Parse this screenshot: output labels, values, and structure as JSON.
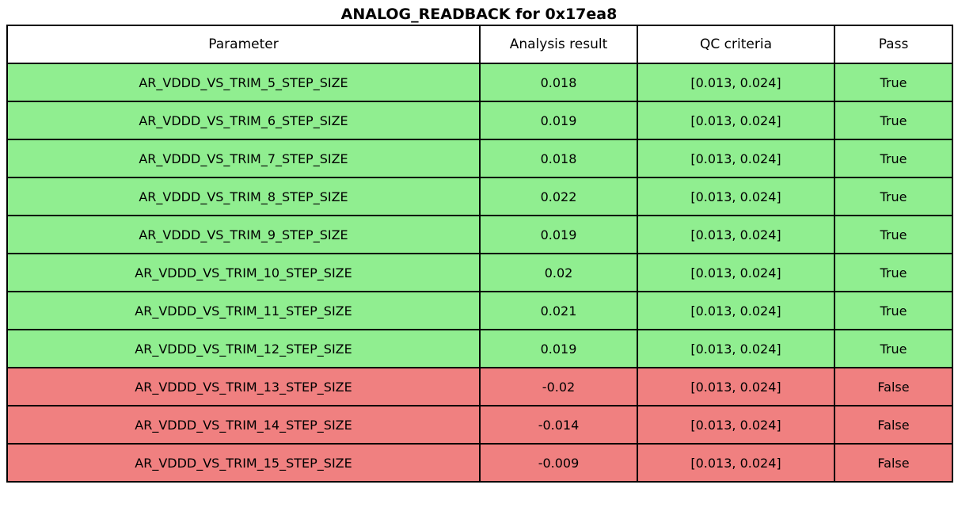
{
  "title": "ANALOG_READBACK for 0x17ea8",
  "colors": {
    "pass_row": "#90EE90",
    "fail_row": "#F08080",
    "header_bg": "#FFFFFF",
    "border": "#000000"
  },
  "table": {
    "headers": [
      "Parameter",
      "Analysis result",
      "QC criteria",
      "Pass"
    ],
    "rows": [
      {
        "parameter": "AR_VDDD_VS_TRIM_5_STEP_SIZE",
        "analysis_result": "0.018",
        "qc_criteria": "[0.013, 0.024]",
        "pass": "True",
        "status": "pass"
      },
      {
        "parameter": "AR_VDDD_VS_TRIM_6_STEP_SIZE",
        "analysis_result": "0.019",
        "qc_criteria": "[0.013, 0.024]",
        "pass": "True",
        "status": "pass"
      },
      {
        "parameter": "AR_VDDD_VS_TRIM_7_STEP_SIZE",
        "analysis_result": "0.018",
        "qc_criteria": "[0.013, 0.024]",
        "pass": "True",
        "status": "pass"
      },
      {
        "parameter": "AR_VDDD_VS_TRIM_8_STEP_SIZE",
        "analysis_result": "0.022",
        "qc_criteria": "[0.013, 0.024]",
        "pass": "True",
        "status": "pass"
      },
      {
        "parameter": "AR_VDDD_VS_TRIM_9_STEP_SIZE",
        "analysis_result": "0.019",
        "qc_criteria": "[0.013, 0.024]",
        "pass": "True",
        "status": "pass"
      },
      {
        "parameter": "AR_VDDD_VS_TRIM_10_STEP_SIZE",
        "analysis_result": "0.02",
        "qc_criteria": "[0.013, 0.024]",
        "pass": "True",
        "status": "pass"
      },
      {
        "parameter": "AR_VDDD_VS_TRIM_11_STEP_SIZE",
        "analysis_result": "0.021",
        "qc_criteria": "[0.013, 0.024]",
        "pass": "True",
        "status": "pass"
      },
      {
        "parameter": "AR_VDDD_VS_TRIM_12_STEP_SIZE",
        "analysis_result": "0.019",
        "qc_criteria": "[0.013, 0.024]",
        "pass": "True",
        "status": "pass"
      },
      {
        "parameter": "AR_VDDD_VS_TRIM_13_STEP_SIZE",
        "analysis_result": "-0.02",
        "qc_criteria": "[0.013, 0.024]",
        "pass": "False",
        "status": "fail"
      },
      {
        "parameter": "AR_VDDD_VS_TRIM_14_STEP_SIZE",
        "analysis_result": "-0.014",
        "qc_criteria": "[0.013, 0.024]",
        "pass": "False",
        "status": "fail"
      },
      {
        "parameter": "AR_VDDD_VS_TRIM_15_STEP_SIZE",
        "analysis_result": "-0.009",
        "qc_criteria": "[0.013, 0.024]",
        "pass": "False",
        "status": "fail"
      }
    ]
  },
  "chart_data": {
    "type": "table",
    "title": "ANALOG_READBACK for 0x17ea8",
    "columns": [
      "Parameter",
      "Analysis result",
      "QC criteria",
      "Pass"
    ],
    "rows": [
      [
        "AR_VDDD_VS_TRIM_5_STEP_SIZE",
        0.018,
        "[0.013, 0.024]",
        true
      ],
      [
        "AR_VDDD_VS_TRIM_6_STEP_SIZE",
        0.019,
        "[0.013, 0.024]",
        true
      ],
      [
        "AR_VDDD_VS_TRIM_7_STEP_SIZE",
        0.018,
        "[0.013, 0.024]",
        true
      ],
      [
        "AR_VDDD_VS_TRIM_8_STEP_SIZE",
        0.022,
        "[0.013, 0.024]",
        true
      ],
      [
        "AR_VDDD_VS_TRIM_9_STEP_SIZE",
        0.019,
        "[0.013, 0.024]",
        true
      ],
      [
        "AR_VDDD_VS_TRIM_10_STEP_SIZE",
        0.02,
        "[0.013, 0.024]",
        true
      ],
      [
        "AR_VDDD_VS_TRIM_11_STEP_SIZE",
        0.021,
        "[0.013, 0.024]",
        true
      ],
      [
        "AR_VDDD_VS_TRIM_12_STEP_SIZE",
        0.019,
        "[0.013, 0.024]",
        true
      ],
      [
        "AR_VDDD_VS_TRIM_13_STEP_SIZE",
        -0.02,
        "[0.013, 0.024]",
        false
      ],
      [
        "AR_VDDD_VS_TRIM_14_STEP_SIZE",
        -0.014,
        "[0.013, 0.024]",
        false
      ],
      [
        "AR_VDDD_VS_TRIM_15_STEP_SIZE",
        -0.009,
        "[0.013, 0.024]",
        false
      ]
    ],
    "qc_range": [
      0.013,
      0.024
    ],
    "row_color_pass": "#90EE90",
    "row_color_fail": "#F08080"
  }
}
